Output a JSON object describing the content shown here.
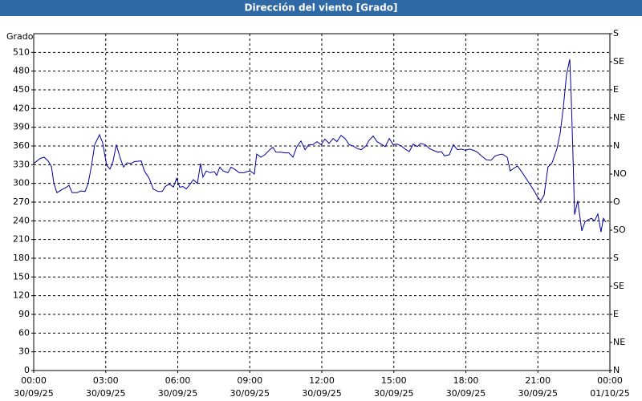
{
  "chart_data": {
    "type": "line",
    "title": "Dirección del viento [Grado]",
    "y_label": "Grado",
    "color": "#0000a0",
    "grid": true,
    "xlim": [
      0,
      24
    ],
    "xticks": [
      {
        "value": 0,
        "label": "00:00",
        "date": "30/09/25"
      },
      {
        "value": 3,
        "label": "03:00",
        "date": "30/09/25"
      },
      {
        "value": 6,
        "label": "06:00",
        "date": "30/09/25"
      },
      {
        "value": 9,
        "label": "09:00",
        "date": "30/09/25"
      },
      {
        "value": 12,
        "label": "12:00",
        "date": "30/09/25"
      },
      {
        "value": 15,
        "label": "15:00",
        "date": "30/09/25"
      },
      {
        "value": 18,
        "label": "18:00",
        "date": "30/09/25"
      },
      {
        "value": 21,
        "label": "21:00",
        "date": "30/09/25"
      },
      {
        "value": 24,
        "label": "00:00",
        "date": "01/10/25"
      }
    ],
    "ylim": [
      0,
      540
    ],
    "yticks": [
      0,
      30,
      60,
      90,
      120,
      150,
      180,
      210,
      240,
      270,
      300,
      330,
      360,
      390,
      420,
      450,
      480,
      510
    ],
    "y2lim": [
      0,
      540
    ],
    "y2ticks": [
      {
        "value": 0,
        "label": "N"
      },
      {
        "value": 45,
        "label": "NE"
      },
      {
        "value": 90,
        "label": "E"
      },
      {
        "value": 135,
        "label": "SE"
      },
      {
        "value": 180,
        "label": "S"
      },
      {
        "value": 225,
        "label": "SO"
      },
      {
        "value": 270,
        "label": "O"
      },
      {
        "value": 315,
        "label": "NO"
      },
      {
        "value": 360,
        "label": "N"
      },
      {
        "value": 405,
        "label": "NE"
      },
      {
        "value": 450,
        "label": "E"
      },
      {
        "value": 495,
        "label": "SE"
      },
      {
        "value": 540,
        "label": "S"
      }
    ],
    "x": [
      0,
      0.27,
      0.43,
      0.6,
      0.74,
      0.84,
      0.97,
      1.17,
      1.37,
      1.47,
      1.6,
      1.8,
      1.97,
      2.14,
      2.27,
      2.41,
      2.54,
      2.74,
      2.87,
      3.04,
      3.18,
      3.31,
      3.44,
      3.61,
      3.74,
      3.88,
      4.04,
      4.21,
      4.48,
      4.61,
      4.81,
      4.98,
      5.18,
      5.35,
      5.48,
      5.65,
      5.82,
      5.95,
      6.08,
      6.22,
      6.35,
      6.52,
      6.65,
      6.82,
      6.95,
      7.05,
      7.19,
      7.35,
      7.52,
      7.62,
      7.75,
      7.89,
      8.09,
      8.22,
      8.36,
      8.56,
      8.76,
      8.89,
      9.02,
      9.19,
      9.29,
      9.46,
      9.63,
      9.83,
      9.96,
      10.09,
      10.29,
      10.46,
      10.63,
      10.8,
      10.96,
      11.13,
      11.3,
      11.46,
      11.63,
      11.8,
      11.97,
      12.13,
      12.3,
      12.47,
      12.63,
      12.8,
      12.97,
      13.14,
      13.3,
      13.47,
      13.64,
      13.84,
      13.97,
      14.14,
      14.3,
      14.47,
      14.64,
      14.81,
      14.97,
      15.14,
      15.31,
      15.51,
      15.64,
      15.81,
      15.98,
      16.11,
      16.31,
      16.48,
      16.64,
      16.84,
      16.98,
      17.11,
      17.31,
      17.48,
      17.65,
      17.81,
      17.98,
      18.15,
      18.32,
      18.48,
      18.65,
      18.85,
      19.05,
      19.22,
      19.39,
      19.52,
      19.72,
      19.85,
      19.99,
      20.15,
      20.32,
      20.49,
      20.66,
      20.86,
      20.99,
      21.12,
      21.26,
      21.42,
      21.59,
      21.79,
      21.93,
      22.06,
      22.19,
      22.33,
      22.39,
      22.46,
      22.53,
      22.66,
      22.83,
      22.96,
      23.1,
      23.23,
      23.36,
      23.5,
      23.63,
      23.73,
      23.83
    ],
    "values": [
      332,
      340,
      342,
      336,
      327,
      300,
      285,
      290,
      294,
      297,
      285,
      285,
      288,
      287,
      300,
      329,
      362,
      378,
      365,
      329,
      323,
      336,
      362,
      340,
      326,
      333,
      332,
      335,
      336,
      320,
      308,
      291,
      287,
      287,
      295,
      299,
      294,
      308,
      294,
      295,
      291,
      299,
      306,
      300,
      332,
      310,
      320,
      317,
      319,
      313,
      326,
      320,
      317,
      326,
      323,
      317,
      317,
      319,
      320,
      315,
      347,
      342,
      346,
      354,
      358,
      350,
      350,
      349,
      349,
      342,
      359,
      368,
      354,
      362,
      362,
      367,
      362,
      371,
      364,
      372,
      367,
      377,
      372,
      362,
      360,
      356,
      354,
      360,
      369,
      376,
      367,
      363,
      359,
      372,
      362,
      363,
      360,
      354,
      351,
      363,
      359,
      364,
      362,
      356,
      353,
      350,
      351,
      344,
      346,
      362,
      354,
      355,
      353,
      355,
      353,
      350,
      344,
      338,
      337,
      344,
      346,
      347,
      342,
      320,
      324,
      328,
      319,
      309,
      299,
      287,
      278,
      272,
      281,
      326,
      333,
      355,
      381,
      422,
      474,
      499,
      438,
      349,
      250,
      272,
      224,
      238,
      242,
      244,
      240,
      251,
      222,
      244,
      238
    ]
  }
}
